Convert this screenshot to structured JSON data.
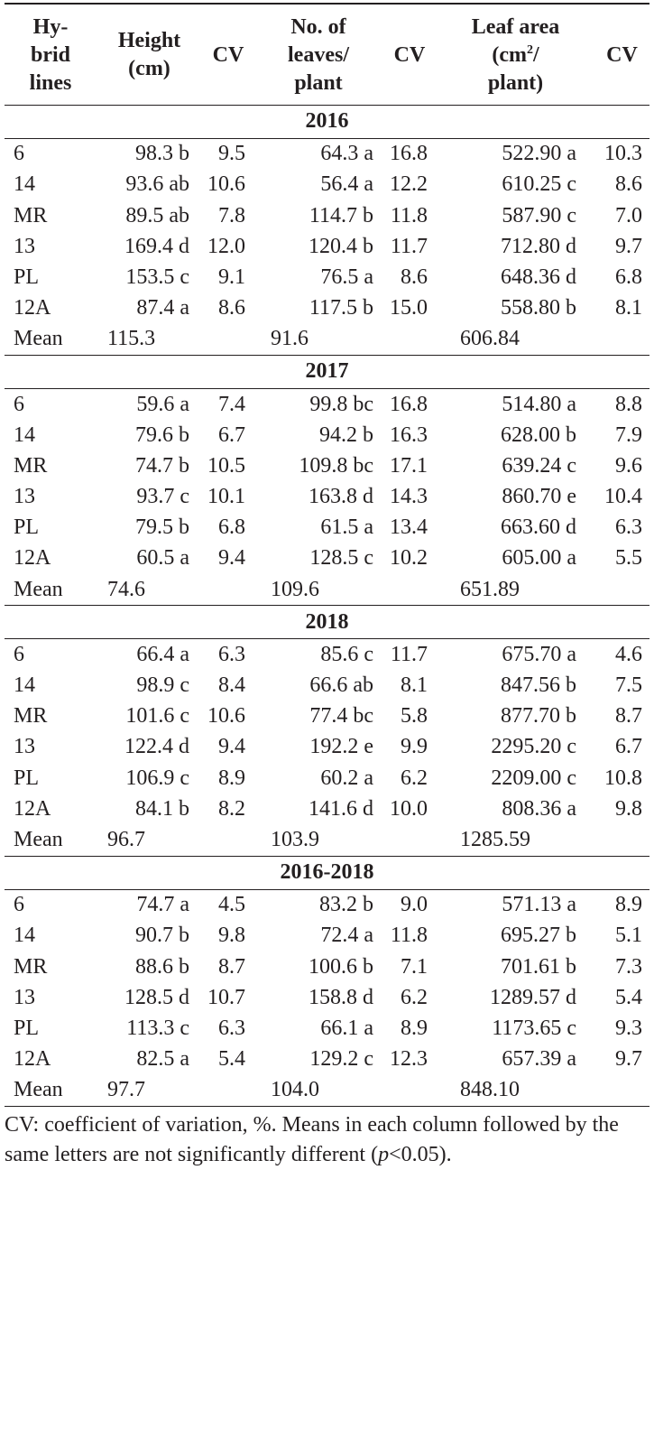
{
  "headers": {
    "line": "Hy-\nbrid\nlines",
    "height": "Height\n(cm)",
    "cv1": "CV",
    "leaves": "No. of\nleaves/\nplant",
    "cv2": "CV",
    "area_pre": "Leaf area\n(cm",
    "area_sup": "2",
    "area_post": "/\nplant)",
    "cv3": "CV"
  },
  "groups": [
    {
      "year": "2016",
      "rows": [
        [
          "6",
          "98.3 b",
          "9.5",
          "64.3 a",
          "16.8",
          "522.90 a",
          "10.3"
        ],
        [
          "14",
          "93.6 ab",
          "10.6",
          "56.4 a",
          "12.2",
          "610.25 c",
          "8.6"
        ],
        [
          "MR",
          "89.5 ab",
          "7.8",
          "114.7 b",
          "11.8",
          "587.90 c",
          "7.0"
        ],
        [
          "13",
          "169.4 d",
          "12.0",
          "120.4 b",
          "11.7",
          "712.80 d",
          "9.7"
        ],
        [
          "PL",
          "153.5 c",
          "9.1",
          "76.5 a",
          "8.6",
          "648.36 d",
          "6.8"
        ],
        [
          "12A",
          "87.4 a",
          "8.6",
          "117.5 b",
          "15.0",
          "558.80 b",
          "8.1"
        ]
      ],
      "mean": [
        "Mean",
        "115.3",
        "91.6",
        "606.84"
      ]
    },
    {
      "year": "2017",
      "rows": [
        [
          "6",
          "59.6 a",
          "7.4",
          "99.8 bc",
          "16.8",
          "514.80 a",
          "8.8"
        ],
        [
          "14",
          "79.6 b",
          "6.7",
          "94.2 b",
          "16.3",
          "628.00 b",
          "7.9"
        ],
        [
          "MR",
          "74.7 b",
          "10.5",
          "109.8 bc",
          "17.1",
          "639.24 c",
          "9.6"
        ],
        [
          "13",
          "93.7 c",
          "10.1",
          "163.8 d",
          "14.3",
          "860.70 e",
          "10.4"
        ],
        [
          "PL",
          "79.5 b",
          "6.8",
          "61.5 a",
          "13.4",
          "663.60 d",
          "6.3"
        ],
        [
          "12A",
          "60.5 a",
          "9.4",
          "128.5 c",
          "10.2",
          "605.00 a",
          "5.5"
        ]
      ],
      "mean": [
        "Mean",
        "74.6",
        "109.6",
        "651.89"
      ]
    },
    {
      "year": "2018",
      "rows": [
        [
          "6",
          "66.4 a",
          "6.3",
          "85.6 c",
          "11.7",
          "675.70 a",
          "4.6"
        ],
        [
          "14",
          "98.9 c",
          "8.4",
          "66.6 ab",
          "8.1",
          "847.56 b",
          "7.5"
        ],
        [
          "MR",
          "101.6 c",
          "10.6",
          "77.4 bc",
          "5.8",
          "877.70 b",
          "8.7"
        ],
        [
          "13",
          "122.4 d",
          "9.4",
          "192.2 e",
          "9.9",
          "2295.20 c",
          "6.7"
        ],
        [
          "PL",
          "106.9 c",
          "8.9",
          "60.2 a",
          "6.2",
          "2209.00 c",
          "10.8"
        ],
        [
          "12A",
          "84.1 b",
          "8.2",
          "141.6 d",
          "10.0",
          "808.36 a",
          "9.8"
        ]
      ],
      "mean": [
        "Mean",
        "96.7",
        "103.9",
        "1285.59"
      ]
    },
    {
      "year": "2016-2018",
      "rows": [
        [
          "6",
          "74.7 a",
          "4.5",
          "83.2 b",
          "9.0",
          "571.13 a",
          "8.9"
        ],
        [
          "14",
          "90.7 b",
          "9.8",
          "72.4 a",
          "11.8",
          "695.27 b",
          "5.1"
        ],
        [
          "MR",
          "88.6 b",
          "8.7",
          "100.6 b",
          "7.1",
          "701.61 b",
          "7.3"
        ],
        [
          "13",
          "128.5 d",
          "10.7",
          "158.8 d",
          "6.2",
          "1289.57 d",
          "5.4"
        ],
        [
          "PL",
          "113.3 c",
          "6.3",
          "66.1 a",
          "8.9",
          "1173.65 c",
          "9.3"
        ],
        [
          "12A",
          "82.5 a",
          "5.4",
          "129.2 c",
          "12.3",
          "657.39 a",
          "9.7"
        ]
      ],
      "mean": [
        "Mean",
        "97.7",
        "104.0",
        "848.10"
      ]
    }
  ],
  "footnote": {
    "text_before": "CV: coefficient of variation, %. Means in each column followed by the same letters are not significantly different (",
    "p_italic": "p",
    "text_after": "<0.05)."
  }
}
